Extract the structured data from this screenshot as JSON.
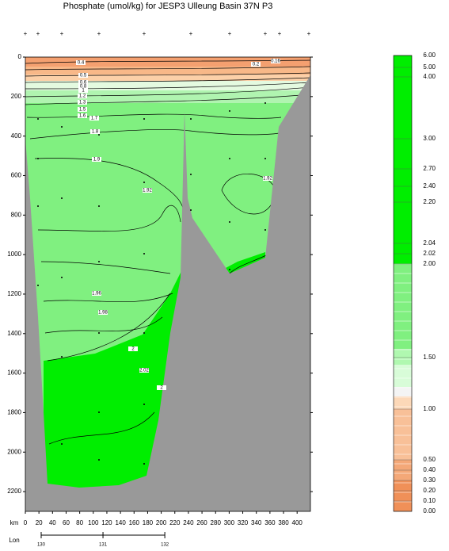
{
  "chart_data": {
    "type": "section",
    "title": "Phosphate (umol/kg) for JESP3 Ulleung Basin 37N P3",
    "xlabel": "km",
    "xlim": [
      0,
      420
    ],
    "xticks": [
      0,
      20,
      40,
      60,
      80,
      100,
      120,
      140,
      160,
      180,
      200,
      220,
      240,
      260,
      280,
      300,
      320,
      340,
      360,
      380,
      400
    ],
    "ylim": [
      0,
      2300
    ],
    "y_inverted": true,
    "yticks": [
      0,
      200,
      400,
      600,
      800,
      1000,
      1200,
      1400,
      1600,
      1800,
      2000,
      2200
    ],
    "lon_label": "Lon",
    "lon_lim": [
      129.744,
      134.36
    ],
    "lon_ticks": [
      130,
      131,
      132
    ],
    "contour_labels": [
      "0.4",
      "0.2",
      "0.16",
      "0.5",
      "0.6",
      "0.8",
      "1",
      "1.2",
      "1.3",
      "1.5",
      "1.6",
      "1.7",
      "1.8",
      "1.9",
      "1.92",
      "1.92",
      "1.96",
      "1.98",
      "2",
      "2.02",
      "2"
    ],
    "colorbar": {
      "labels": [
        "6.00",
        "5.00",
        "4.00",
        "3.00",
        "2.70",
        "2.40",
        "2.20",
        "2.04",
        "2.02",
        "2.00",
        "1.50",
        "1.00",
        "0.50",
        "0.40",
        "0.30",
        "0.20",
        "0.10",
        "0.00"
      ]
    }
  }
}
